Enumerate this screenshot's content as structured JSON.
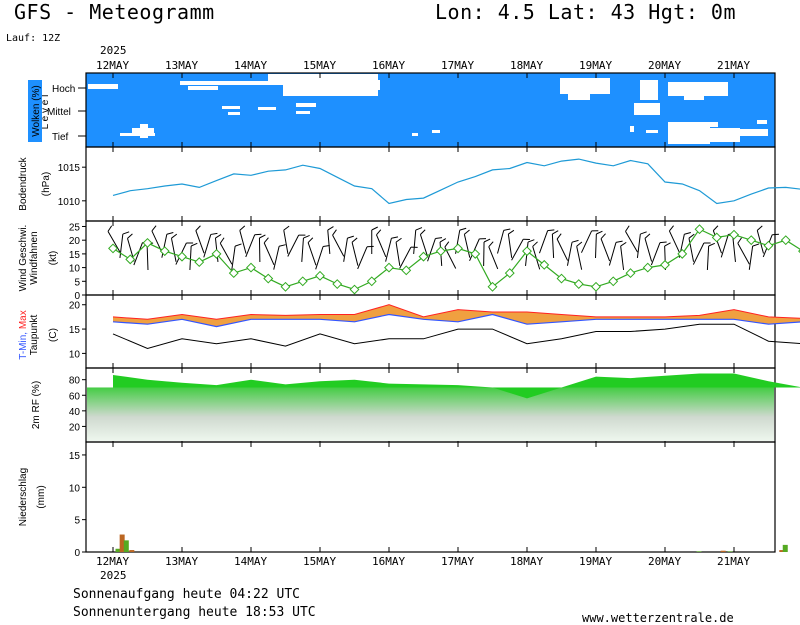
{
  "header": {
    "model_title": "GFS - Meteogramm",
    "location": "Lon: 4.5 Lat: 43 Hgt: 0m",
    "run": "Lauf: 12Z",
    "year": "2025"
  },
  "footer": {
    "sunrise": "Sonnenaufgang heute 04:22 UTC",
    "sunset": "Sonnenuntergang heute 18:53 UTC",
    "credit": "www.wetterzentrale.de"
  },
  "days": [
    "12MAY",
    "13MAY",
    "14MAY",
    "15MAY",
    "16MAY",
    "17MAY",
    "18MAY",
    "19MAY",
    "20MAY",
    "21MAY"
  ],
  "colors": {
    "cloud_bg": "#1e90ff",
    "pressure": "#1e9ad6",
    "wind_speed": "#33aa22",
    "tmin": "#3355ff",
    "tmax": "#ff2222",
    "temp_fill": "#f0a040",
    "humidity": "#22cc22",
    "precip_green": "#55aa22",
    "precip_brown": "#bb6622"
  },
  "chart_data": [
    {
      "type": "area",
      "panel": "clouds",
      "ylabel": "Wolken (%)",
      "ylabel_side": "L e v e l",
      "levels": [
        "Hoch",
        "Mittel",
        "Tief"
      ]
    },
    {
      "type": "line",
      "panel": "pressure",
      "ylabel": "Bodendruck",
      "yunit": "(hPa)",
      "yticks": [
        1010,
        1015
      ],
      "ylim": [
        1007,
        1018
      ],
      "x_days": [
        0,
        0.25,
        0.5,
        0.75,
        1,
        1.25,
        1.5,
        1.75,
        2,
        2.25,
        2.5,
        2.75,
        3,
        3.25,
        3.5,
        3.75,
        4,
        4.25,
        4.5,
        4.75,
        5,
        5.25,
        5.5,
        5.75,
        6,
        6.25,
        6.5,
        6.75,
        7,
        7.25,
        7.5,
        7.75,
        8,
        8.25,
        8.5,
        8.75,
        9,
        9.25,
        9.5,
        9.75,
        10
      ],
      "values": [
        1010.8,
        1011.5,
        1011.8,
        1012.2,
        1012.5,
        1012,
        1013,
        1014,
        1013.8,
        1014.4,
        1014.6,
        1015.3,
        1014.8,
        1013.5,
        1012.2,
        1011.8,
        1009.6,
        1010.2,
        1010.4,
        1011.6,
        1012.8,
        1013.6,
        1014.6,
        1014.8,
        1015.7,
        1015.2,
        1015.9,
        1016.2,
        1015.6,
        1015.2,
        1016,
        1015.5,
        1012.8,
        1012.5,
        1011.5,
        1009.6,
        1010,
        1011,
        1011.9,
        1012,
        1011.7
      ]
    },
    {
      "type": "line",
      "panel": "wind",
      "ylabel": "Wind Geschwi.",
      "ylabel2": "Windfahnen",
      "yunit": "(kt)",
      "yticks": [
        0,
        5,
        10,
        15,
        20,
        25
      ],
      "ylim": [
        0,
        27
      ],
      "x_days": [
        0,
        0.25,
        0.5,
        0.75,
        1,
        1.25,
        1.5,
        1.75,
        2,
        2.25,
        2.5,
        2.75,
        3,
        3.25,
        3.5,
        3.75,
        4,
        4.25,
        4.5,
        4.75,
        5,
        5.25,
        5.5,
        5.75,
        6,
        6.25,
        6.5,
        6.75,
        7,
        7.25,
        7.5,
        7.75,
        8,
        8.25,
        8.5,
        8.75,
        9,
        9.25,
        9.5,
        9.75,
        10
      ],
      "values": [
        17,
        13,
        19,
        16,
        14,
        12,
        15,
        8,
        10,
        6,
        3,
        5,
        7,
        4,
        2,
        5,
        10,
        9,
        14,
        16,
        17,
        15,
        3,
        8,
        16,
        11,
        6,
        4,
        3,
        5,
        8,
        10,
        11,
        15,
        24,
        21,
        22,
        20,
        18,
        20,
        16
      ]
    },
    {
      "type": "line",
      "panel": "temperature",
      "ylabel": "T-Min, Max",
      "ylabel2": "Taupunkt",
      "yunit": "(C)",
      "yticks": [
        10,
        15,
        20
      ],
      "ylim": [
        7,
        22
      ],
      "x_days": [
        0,
        0.5,
        1,
        1.5,
        2,
        2.5,
        3,
        3.5,
        4,
        4.5,
        5,
        5.5,
        6,
        6.5,
        7,
        7.5,
        8,
        8.5,
        9,
        9.5,
        10
      ],
      "series": [
        {
          "name": "T-Min",
          "values": [
            16.5,
            16,
            17,
            15.5,
            17,
            17,
            17,
            16.5,
            18,
            17,
            16.5,
            18,
            16,
            16.5,
            17,
            17,
            17,
            17,
            17,
            16,
            16.5
          ]
        },
        {
          "name": "T-Max",
          "values": [
            17.5,
            17,
            18,
            17,
            18,
            17.8,
            18,
            18,
            20,
            17.5,
            19,
            18.5,
            18.5,
            18,
            17.5,
            17.5,
            17.5,
            17.8,
            19,
            17.5,
            17.2
          ]
        },
        {
          "name": "Taupunkt",
          "values": [
            14,
            11,
            13,
            12,
            13,
            11.5,
            14,
            12,
            13,
            13,
            15,
            15,
            12,
            13,
            14.5,
            14.5,
            15,
            16,
            16,
            12.5,
            12
          ]
        }
      ]
    },
    {
      "type": "area",
      "panel": "humidity",
      "ylabel": "2m RF (%)",
      "yticks": [
        20,
        40,
        60,
        80
      ],
      "ylim": [
        0,
        95
      ],
      "x_days": [
        0,
        0.5,
        1,
        1.5,
        2,
        2.5,
        3,
        3.5,
        4,
        4.5,
        5,
        5.5,
        6,
        6.5,
        7,
        7.5,
        8,
        8.5,
        9,
        9.5,
        10
      ],
      "values": [
        86,
        80,
        76,
        73,
        80,
        74,
        78,
        80,
        75,
        74,
        73,
        70,
        56,
        70,
        84,
        82,
        85,
        88,
        88,
        78,
        70
      ]
    },
    {
      "type": "bar",
      "panel": "precipitation",
      "ylabel": "Niederschlag",
      "yunit": "(mm)",
      "yticks": [
        0,
        5,
        10,
        15
      ],
      "ylim": [
        0,
        17
      ],
      "x_days": [
        0.08,
        0.14,
        0.2,
        0.28,
        8.5,
        8.85,
        8.95,
        9.7,
        9.75
      ],
      "values": [
        0.5,
        2.7,
        1.8,
        0.3,
        0.1,
        0.2,
        0.1,
        0.3,
        1.1
      ]
    }
  ]
}
